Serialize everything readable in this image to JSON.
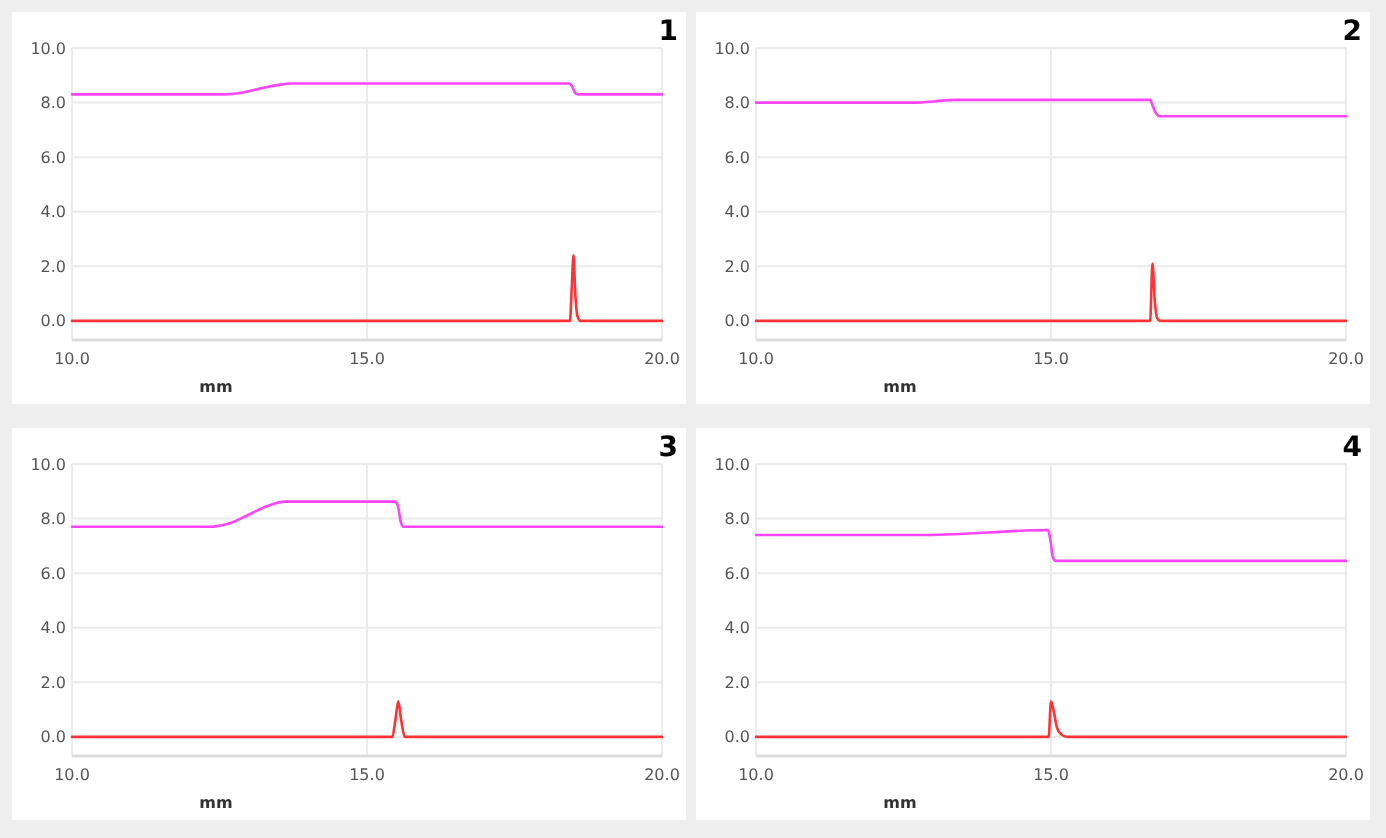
{
  "chart_data": [
    {
      "type": "line",
      "title": "1",
      "xlabel": "mm",
      "xlim": [
        10,
        20
      ],
      "ylim": [
        -0.7,
        10
      ],
      "xticks": [
        {
          "value": 10,
          "label": "10.0"
        },
        {
          "value": 15,
          "label": "15.0"
        },
        {
          "value": 20,
          "label": "20.0"
        }
      ],
      "yticks": [
        {
          "value": 0,
          "label": "0.0"
        },
        {
          "value": 2,
          "label": "2.0"
        },
        {
          "value": 4,
          "label": "4.0"
        },
        {
          "value": 6,
          "label": "6.0"
        },
        {
          "value": 8,
          "label": "8.0"
        },
        {
          "value": 10,
          "label": "10.0"
        }
      ],
      "grid": true,
      "marker": "none",
      "line_style": "solid",
      "series": [
        {
          "color": "#ff44ff",
          "x": [
            10,
            12.55,
            12.9,
            13.2,
            13.5,
            13.75,
            18.42,
            18.47,
            18.53,
            18.58,
            20
          ],
          "values": [
            8.3,
            8.3,
            8.37,
            8.52,
            8.65,
            8.7,
            8.7,
            8.62,
            8.35,
            8.3,
            8.3
          ]
        },
        {
          "color": "#ff3333",
          "x": [
            10,
            18.44,
            18.47,
            18.5,
            18.53,
            18.57,
            18.62,
            20
          ],
          "values": [
            0,
            0,
            1.2,
            2.4,
            1.0,
            0.15,
            0,
            0
          ]
        }
      ]
    },
    {
      "type": "line",
      "title": "2",
      "xlabel": "mm",
      "xlim": [
        10,
        20
      ],
      "ylim": [
        -0.7,
        10
      ],
      "xticks": [
        {
          "value": 10,
          "label": "10.0"
        },
        {
          "value": 15,
          "label": "15.0"
        },
        {
          "value": 20,
          "label": "20.0"
        }
      ],
      "yticks": [
        {
          "value": 0,
          "label": "0.0"
        },
        {
          "value": 2,
          "label": "2.0"
        },
        {
          "value": 4,
          "label": "4.0"
        },
        {
          "value": 6,
          "label": "6.0"
        },
        {
          "value": 8,
          "label": "8.0"
        },
        {
          "value": 10,
          "label": "10.0"
        }
      ],
      "grid": true,
      "marker": "none",
      "line_style": "solid",
      "series": [
        {
          "color": "#ff44ff",
          "x": [
            10,
            12.75,
            13.05,
            13.35,
            16.68,
            16.72,
            16.78,
            16.84,
            20
          ],
          "values": [
            8,
            8,
            8.05,
            8.1,
            8.1,
            7.9,
            7.6,
            7.5,
            7.5
          ]
        },
        {
          "color": "#ff3333",
          "x": [
            10,
            16.68,
            16.72,
            16.76,
            16.8,
            16.85,
            20
          ],
          "values": [
            0,
            0,
            2.1,
            0.7,
            0.1,
            0,
            0
          ]
        }
      ]
    },
    {
      "type": "line",
      "title": "3",
      "xlabel": "mm",
      "xlim": [
        10,
        20
      ],
      "ylim": [
        -0.7,
        10
      ],
      "xticks": [
        {
          "value": 10,
          "label": "10.0"
        },
        {
          "value": 15,
          "label": "15.0"
        },
        {
          "value": 20,
          "label": "20.0"
        }
      ],
      "yticks": [
        {
          "value": 0,
          "label": "0.0"
        },
        {
          "value": 2,
          "label": "2.0"
        },
        {
          "value": 4,
          "label": "4.0"
        },
        {
          "value": 6,
          "label": "6.0"
        },
        {
          "value": 8,
          "label": "8.0"
        },
        {
          "value": 10,
          "label": "10.0"
        }
      ],
      "grid": true,
      "marker": "none",
      "line_style": "solid",
      "series": [
        {
          "color": "#ff44ff",
          "x": [
            10,
            12.3,
            12.7,
            13.0,
            13.3,
            13.6,
            15.47,
            15.52,
            15.57,
            15.62,
            20
          ],
          "values": [
            7.7,
            7.7,
            7.85,
            8.15,
            8.45,
            8.62,
            8.62,
            8.5,
            7.9,
            7.7,
            7.7
          ]
        },
        {
          "color": "#ff3333",
          "x": [
            10,
            15.43,
            15.48,
            15.53,
            15.58,
            15.64,
            20
          ],
          "values": [
            0,
            0,
            0.6,
            1.3,
            0.6,
            0,
            0
          ]
        }
      ]
    },
    {
      "type": "line",
      "title": "4",
      "xlabel": "mm",
      "xlim": [
        10,
        20
      ],
      "ylim": [
        -0.7,
        10
      ],
      "xticks": [
        {
          "value": 10,
          "label": "10.0"
        },
        {
          "value": 15,
          "label": "15.0"
        },
        {
          "value": 20,
          "label": "20.0"
        }
      ],
      "yticks": [
        {
          "value": 0,
          "label": "0.0"
        },
        {
          "value": 2,
          "label": "2.0"
        },
        {
          "value": 4,
          "label": "4.0"
        },
        {
          "value": 6,
          "label": "6.0"
        },
        {
          "value": 8,
          "label": "8.0"
        },
        {
          "value": 10,
          "label": "10.0"
        }
      ],
      "grid": true,
      "marker": "none",
      "line_style": "solid",
      "series": [
        {
          "color": "#ff44ff",
          "x": [
            10,
            12.9,
            14.95,
            14.99,
            15.03,
            15.08,
            20
          ],
          "values": [
            7.4,
            7.4,
            7.58,
            7.2,
            6.6,
            6.45,
            6.45
          ]
        },
        {
          "color": "#ff3333",
          "x": [
            10,
            14.96,
            15.0,
            15.05,
            15.1,
            15.18,
            15.28,
            20
          ],
          "values": [
            0,
            0,
            1.3,
            0.9,
            0.35,
            0.08,
            0,
            0
          ]
        }
      ]
    }
  ]
}
